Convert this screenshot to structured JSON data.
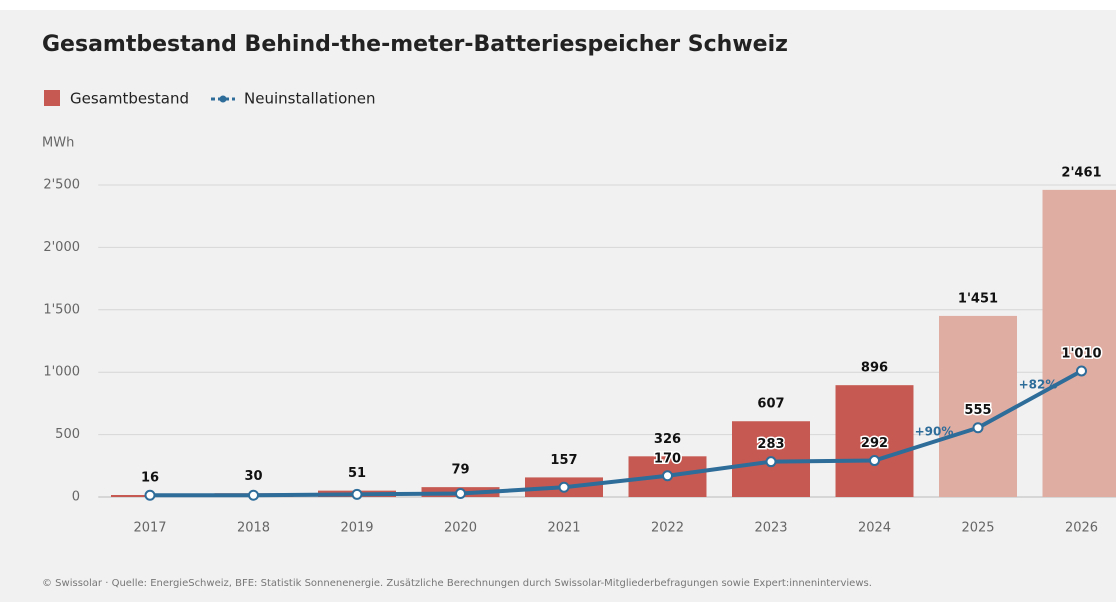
{
  "chart_data": {
    "type": "bar",
    "title": "Gesamtbestand Behind-the-meter-Batteriespeicher Schweiz",
    "y_label": "MWh",
    "source": "© Swissolar · Quelle: EnergieSchweiz, BFE: Statistik Sonnenenergie. Zusätzliche Berechnungen durch Swissolar-Mitgliederbefragungen sowie Expert:inneninterviews.",
    "categories": [
      "2017",
      "2018",
      "2019",
      "2020",
      "2021",
      "2022",
      "2023",
      "2024",
      "2025",
      "2026"
    ],
    "series": [
      {
        "name": "Gesamtbestand",
        "type": "bar",
        "colors": [
          "#c65a52",
          "#c65a52",
          "#c65a52",
          "#c65a52",
          "#c65a52",
          "#c65a52",
          "#c65a52",
          "#c65a52",
          "#e0ada2",
          "#e0ada2"
        ],
        "values": [
          16,
          30,
          51,
          79,
          157,
          326,
          607,
          896,
          1451,
          2461
        ],
        "value_labels": [
          "16",
          "30",
          "51",
          "79",
          "157",
          "326",
          "607",
          "896",
          "1'451",
          "2'461"
        ]
      },
      {
        "name": "Neuinstallationen",
        "type": "line",
        "color": "#2e6c9a",
        "values": [
          14,
          14,
          21,
          28,
          78,
          170,
          283,
          292,
          555,
          1010
        ],
        "value_labels": [
          null,
          null,
          null,
          null,
          null,
          "170",
          "283",
          "292",
          "555",
          "1'010"
        ]
      }
    ],
    "annotations": [
      "+90%",
      "+82%"
    ],
    "ylim": [
      0,
      2700
    ],
    "yticks": [
      0,
      500,
      {
        "value": 1000,
        "label": "1'000"
      },
      {
        "value": 1500,
        "label": "1'500"
      },
      {
        "value": 2000,
        "label": "2'000"
      },
      {
        "value": 2500,
        "label": "2'500"
      }
    ],
    "grid": true
  }
}
